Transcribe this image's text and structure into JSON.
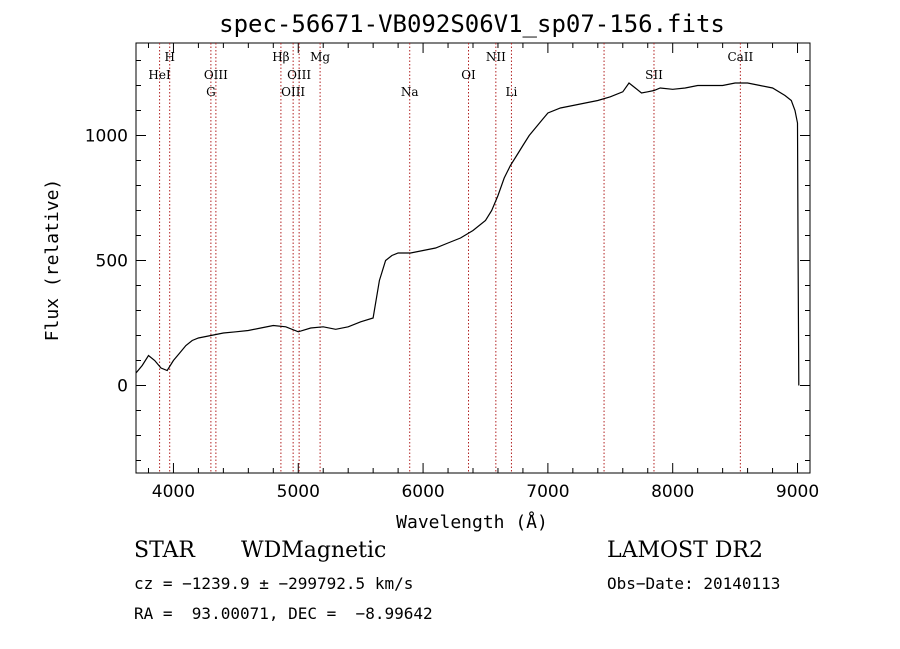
{
  "chart_data": {
    "type": "line",
    "title": "spec-56671-VB092S06V1_sp07-156.fits",
    "xlabel": "Wavelength (Å)",
    "ylabel": "Flux (relative)",
    "xlim": [
      3700,
      9100
    ],
    "ylim": [
      -350,
      1370
    ],
    "xticks": [
      4000,
      5000,
      6000,
      7000,
      8000,
      9000
    ],
    "yticks": [
      0,
      500,
      1000
    ],
    "grid": false,
    "line_color": "#000000",
    "marker_color": "#b22222",
    "series": [
      {
        "x": [
          3700,
          3750,
          3800,
          3850,
          3900,
          3950,
          4000,
          4050,
          4100,
          4150,
          4200,
          4300,
          4400,
          4500,
          4600,
          4700,
          4800,
          4900,
          5000,
          5100,
          5200,
          5300,
          5400,
          5500,
          5600,
          5650,
          5700,
          5750,
          5800,
          5900,
          6000,
          6100,
          6200,
          6300,
          6400,
          6500,
          6550,
          6600,
          6650,
          6700,
          6750,
          6800,
          6850,
          6900,
          6950,
          7000,
          7100,
          7200,
          7300,
          7400,
          7500,
          7600,
          7650,
          7700,
          7750,
          7800,
          7850,
          7900,
          8000,
          8100,
          8200,
          8300,
          8400,
          8500,
          8600,
          8700,
          8800,
          8900,
          8950,
          8980,
          9000,
          9005,
          9010
        ],
        "y": [
          50,
          80,
          120,
          100,
          70,
          60,
          100,
          130,
          160,
          180,
          190,
          200,
          210,
          215,
          220,
          230,
          240,
          235,
          215,
          230,
          235,
          225,
          235,
          255,
          270,
          420,
          500,
          520,
          530,
          530,
          540,
          550,
          570,
          590,
          620,
          660,
          700,
          760,
          830,
          880,
          920,
          960,
          1000,
          1030,
          1060,
          1090,
          1110,
          1120,
          1130,
          1140,
          1155,
          1175,
          1210,
          1190,
          1170,
          1175,
          1180,
          1190,
          1185,
          1190,
          1200,
          1200,
          1200,
          1210,
          1210,
          1200,
          1190,
          1160,
          1140,
          1100,
          1050,
          500,
          0
        ]
      }
    ],
    "lines": [
      {
        "wavelength": 3889,
        "label": "HeI",
        "row": 2
      },
      {
        "wavelength": 3970,
        "label": "H",
        "row": 1
      },
      {
        "wavelength": 4300,
        "label": "G",
        "row": 3
      },
      {
        "wavelength": 4340,
        "label": "OIII",
        "row": 2
      },
      {
        "wavelength": 4861,
        "label": "Hβ",
        "row": 1
      },
      {
        "wavelength": 4959,
        "label": "OIII",
        "row": 3
      },
      {
        "wavelength": 5007,
        "label": "OIII",
        "row": 2
      },
      {
        "wavelength": 5175,
        "label": "Mg",
        "row": 1
      },
      {
        "wavelength": 5893,
        "label": "Na",
        "row": 3
      },
      {
        "wavelength": 6364,
        "label": "OI",
        "row": 2
      },
      {
        "wavelength": 6583,
        "label": "NII",
        "row": 1
      },
      {
        "wavelength": 6708,
        "label": "Li",
        "row": 3
      },
      {
        "wavelength": 7450,
        "label": "",
        "row": 0
      },
      {
        "wavelength": 7850,
        "label": "SII",
        "row": 2
      },
      {
        "wavelength": 8542,
        "label": "CaII",
        "row": 1
      }
    ]
  },
  "info": {
    "class": "STAR",
    "subclass": "WDMagnetic",
    "survey": "LAMOST DR2",
    "cz": "cz = −1239.9 ± −299792.5 km/s",
    "obs_date": "Obs−Date: 20140113",
    "radec": "RA =  93.00071, DEC =  −8.99642"
  }
}
